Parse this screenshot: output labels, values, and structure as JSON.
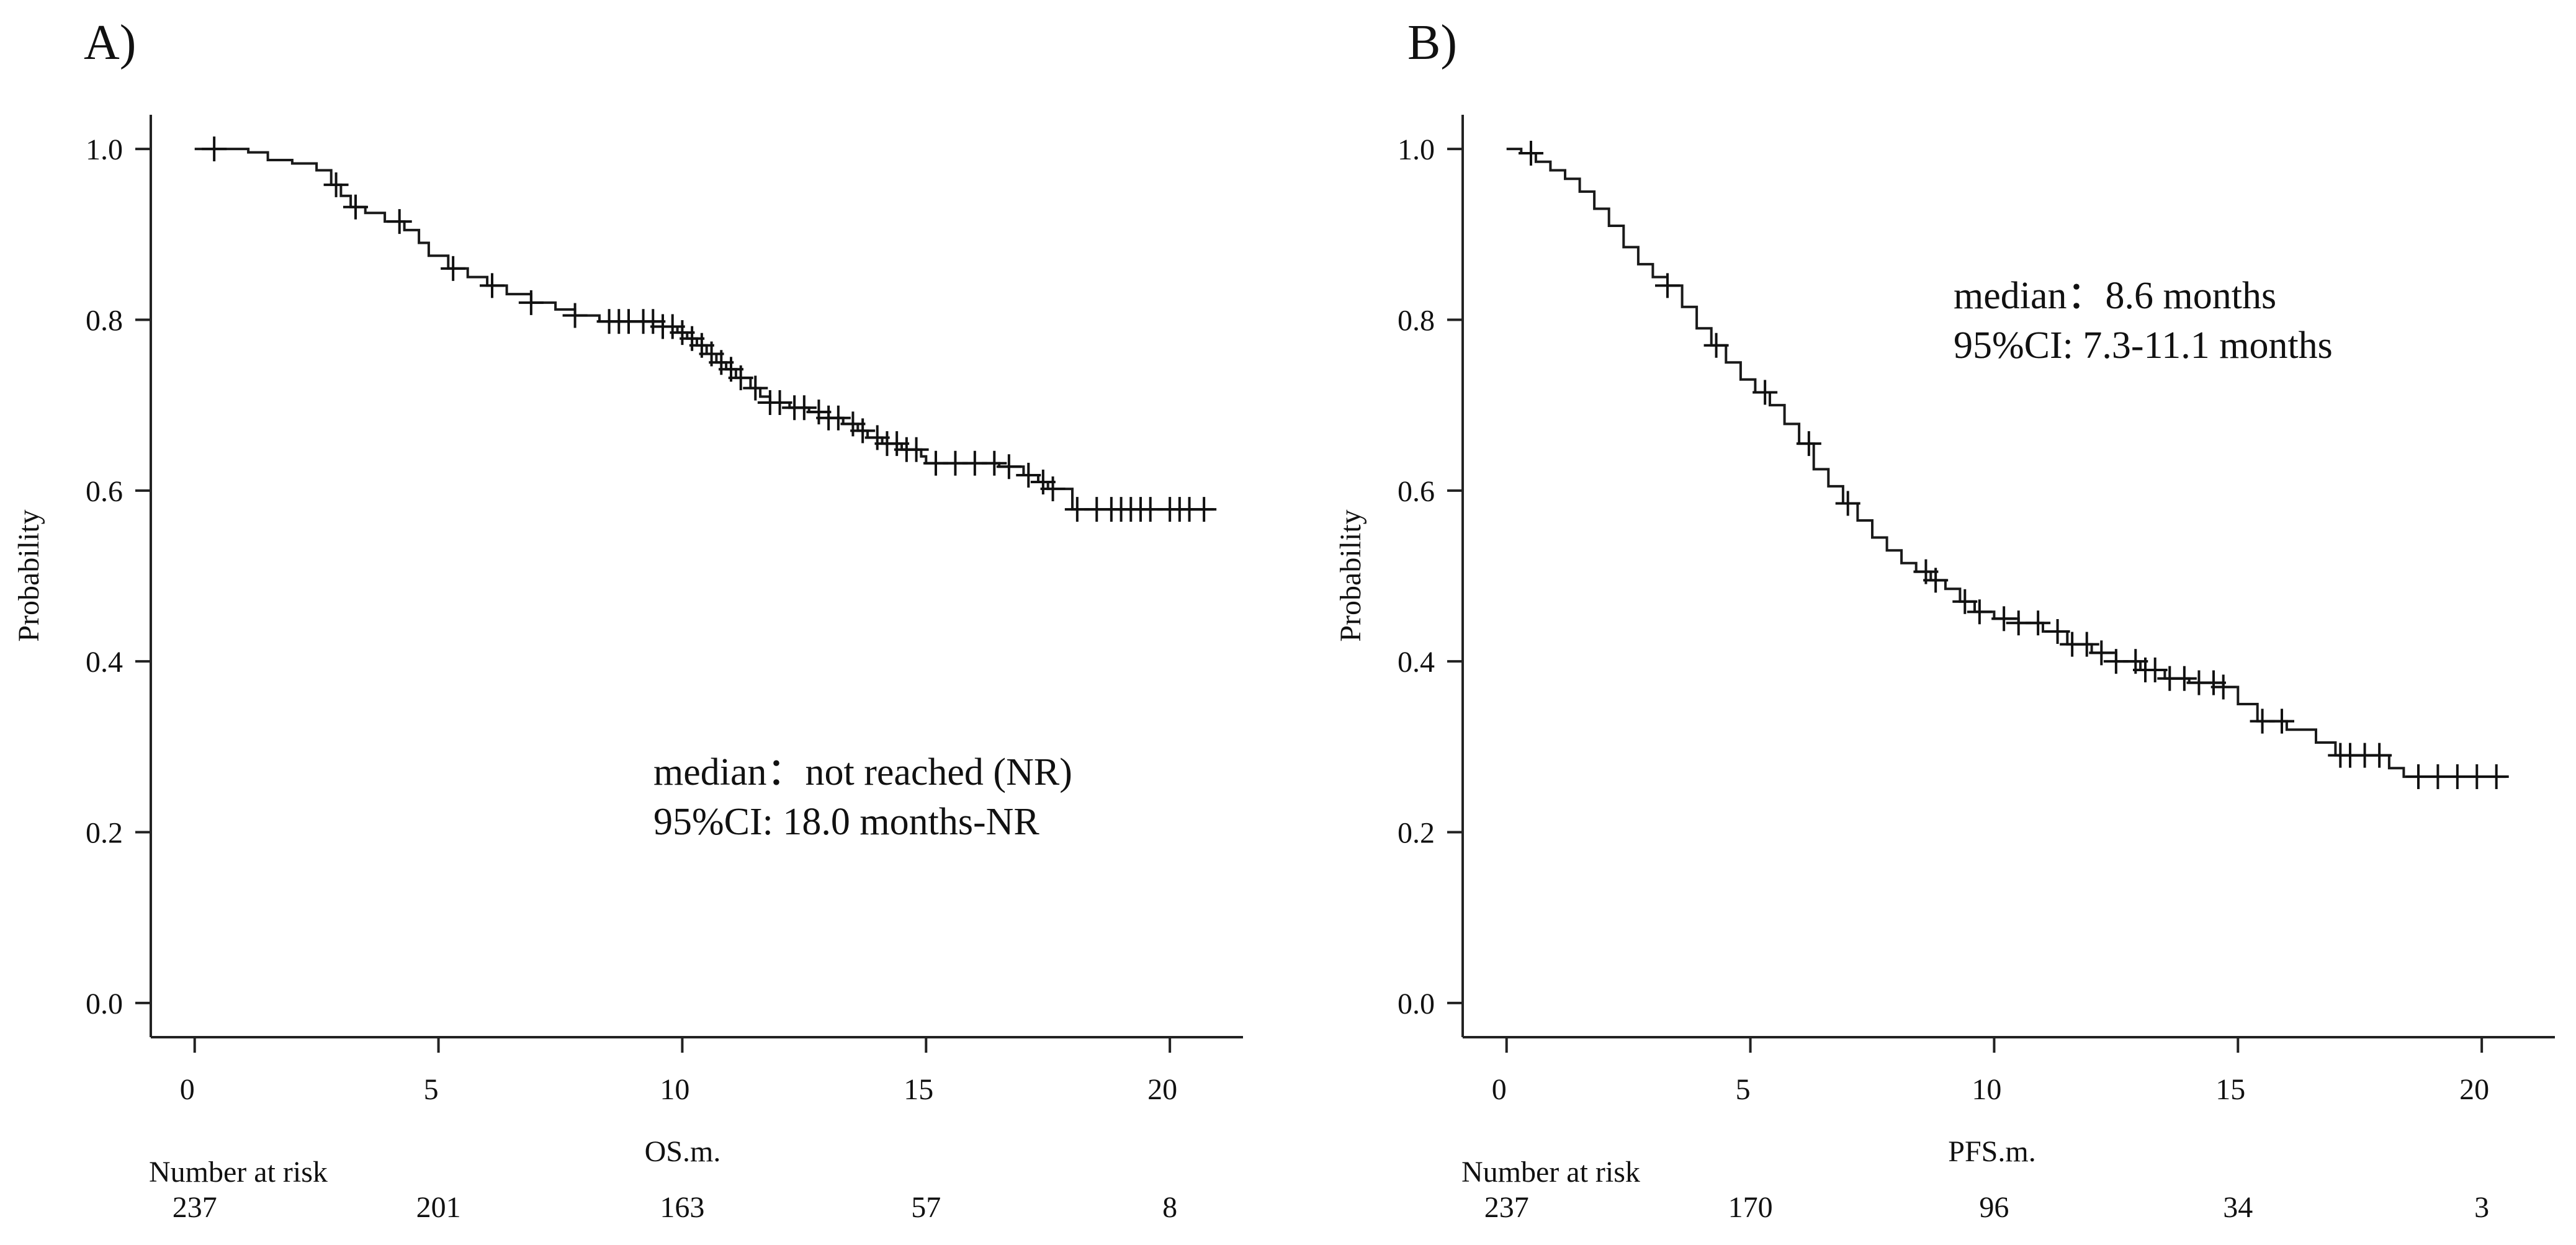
{
  "chart_data": [
    {
      "type": "line",
      "panel_label": "A)",
      "xlabel": "OS.m.",
      "ylabel": "Probability",
      "xlim": [
        -0.9,
        21.5
      ],
      "ylim": [
        -0.04,
        1.04
      ],
      "x_ticks": [
        "0",
        "5",
        "10",
        "15",
        "20"
      ],
      "y_ticks": [
        "0.0",
        "0.2",
        "0.4",
        "0.6",
        "0.8",
        "1.0"
      ],
      "annotation_line1": "median：not reached (NR)",
      "annotation_line2": "95%CI: 18.0 months-NR",
      "risk_title": "Number at risk",
      "risk_values": [
        "237",
        "201",
        "163",
        "57",
        "8"
      ],
      "series": [
        {
          "name": "OS",
          "steps": [
            [
              0,
              1.0
            ],
            [
              1.1,
              0.996
            ],
            [
              1.5,
              0.987
            ],
            [
              2.0,
              0.983
            ],
            [
              2.5,
              0.975
            ],
            [
              2.8,
              0.958
            ],
            [
              3.0,
              0.945
            ],
            [
              3.2,
              0.932
            ],
            [
              3.5,
              0.925
            ],
            [
              3.9,
              0.915
            ],
            [
              4.3,
              0.905
            ],
            [
              4.6,
              0.89
            ],
            [
              4.8,
              0.875
            ],
            [
              5.2,
              0.86
            ],
            [
              5.6,
              0.85
            ],
            [
              6.0,
              0.84
            ],
            [
              6.4,
              0.83
            ],
            [
              6.9,
              0.82
            ],
            [
              7.4,
              0.812
            ],
            [
              7.8,
              0.805
            ],
            [
              8.3,
              0.798
            ],
            [
              9.6,
              0.792
            ],
            [
              9.9,
              0.785
            ],
            [
              10.1,
              0.778
            ],
            [
              10.3,
              0.77
            ],
            [
              10.5,
              0.76
            ],
            [
              10.7,
              0.75
            ],
            [
              10.9,
              0.742
            ],
            [
              11.1,
              0.732
            ],
            [
              11.4,
              0.72
            ],
            [
              11.6,
              0.71
            ],
            [
              11.8,
              0.703
            ],
            [
              12.2,
              0.697
            ],
            [
              12.6,
              0.692
            ],
            [
              13.0,
              0.685
            ],
            [
              13.3,
              0.678
            ],
            [
              13.6,
              0.67
            ],
            [
              13.8,
              0.662
            ],
            [
              14.1,
              0.655
            ],
            [
              14.5,
              0.648
            ],
            [
              14.9,
              0.64
            ],
            [
              15.0,
              0.632
            ],
            [
              16.5,
              0.628
            ],
            [
              17.0,
              0.618
            ],
            [
              17.3,
              0.61
            ],
            [
              17.5,
              0.602
            ],
            [
              18.0,
              0.578
            ],
            [
              20.9,
              0.578
            ]
          ],
          "censor_x": [
            0.4,
            2.9,
            3.3,
            4.2,
            5.3,
            6.1,
            6.9,
            7.8,
            8.5,
            8.7,
            8.9,
            9.2,
            9.4,
            9.6,
            9.8,
            10.0,
            10.2,
            10.4,
            10.6,
            10.8,
            11.0,
            11.2,
            11.5,
            11.8,
            12.0,
            12.3,
            12.5,
            12.8,
            13.0,
            13.2,
            13.5,
            13.7,
            14.0,
            14.2,
            14.4,
            14.6,
            14.8,
            15.2,
            15.6,
            16.0,
            16.4,
            16.7,
            17.1,
            17.4,
            17.6,
            18.1,
            18.5,
            18.8,
            19.0,
            19.2,
            19.4,
            19.6,
            20.0,
            20.2,
            20.4,
            20.7
          ]
        }
      ]
    },
    {
      "type": "line",
      "panel_label": "B)",
      "xlabel": "PFS.m.",
      "ylabel": "Probability",
      "xlim": [
        -0.9,
        21.5
      ],
      "ylim": [
        -0.04,
        1.04
      ],
      "x_ticks": [
        "0",
        "5",
        "10",
        "15",
        "20"
      ],
      "y_ticks": [
        "0.0",
        "0.2",
        "0.4",
        "0.6",
        "0.8",
        "1.0"
      ],
      "annotation_line1": "median：8.6 months",
      "annotation_line2": "95%CI: 7.3-11.1 months",
      "risk_title": "Number at risk",
      "risk_values": [
        "237",
        "170",
        "96",
        "34",
        "3"
      ],
      "series": [
        {
          "name": "PFS",
          "steps": [
            [
              0,
              1.0
            ],
            [
              0.3,
              0.995
            ],
            [
              0.6,
              0.985
            ],
            [
              0.9,
              0.975
            ],
            [
              1.2,
              0.965
            ],
            [
              1.5,
              0.95
            ],
            [
              1.8,
              0.93
            ],
            [
              2.1,
              0.91
            ],
            [
              2.4,
              0.885
            ],
            [
              2.7,
              0.865
            ],
            [
              3.0,
              0.85
            ],
            [
              3.3,
              0.84
            ],
            [
              3.6,
              0.815
            ],
            [
              3.9,
              0.79
            ],
            [
              4.2,
              0.77
            ],
            [
              4.5,
              0.75
            ],
            [
              4.8,
              0.73
            ],
            [
              5.1,
              0.715
            ],
            [
              5.4,
              0.7
            ],
            [
              5.7,
              0.678
            ],
            [
              6.0,
              0.655
            ],
            [
              6.3,
              0.625
            ],
            [
              6.6,
              0.605
            ],
            [
              6.9,
              0.585
            ],
            [
              7.2,
              0.565
            ],
            [
              7.5,
              0.545
            ],
            [
              7.8,
              0.53
            ],
            [
              8.1,
              0.515
            ],
            [
              8.4,
              0.505
            ],
            [
              8.7,
              0.495
            ],
            [
              9.0,
              0.485
            ],
            [
              9.3,
              0.47
            ],
            [
              9.6,
              0.458
            ],
            [
              10.0,
              0.45
            ],
            [
              10.5,
              0.445
            ],
            [
              11.0,
              0.435
            ],
            [
              11.5,
              0.42
            ],
            [
              12.0,
              0.41
            ],
            [
              12.5,
              0.4
            ],
            [
              13.0,
              0.39
            ],
            [
              13.5,
              0.38
            ],
            [
              14.0,
              0.375
            ],
            [
              14.7,
              0.37
            ],
            [
              15.0,
              0.35
            ],
            [
              15.4,
              0.33
            ],
            [
              16.0,
              0.32
            ],
            [
              16.6,
              0.305
            ],
            [
              17.0,
              0.29
            ],
            [
              18.1,
              0.275
            ],
            [
              18.4,
              0.265
            ],
            [
              20.5,
              0.265
            ]
          ],
          "censor_x": [
            0.5,
            3.3,
            4.3,
            5.3,
            6.2,
            7.0,
            8.6,
            8.8,
            9.4,
            9.7,
            10.2,
            10.5,
            10.9,
            11.3,
            11.6,
            11.9,
            12.2,
            12.5,
            12.9,
            13.1,
            13.3,
            13.6,
            13.9,
            14.2,
            14.5,
            14.7,
            15.5,
            15.9,
            17.1,
            17.3,
            17.6,
            17.9,
            18.7,
            19.1,
            19.5,
            19.9,
            20.3
          ]
        }
      ]
    }
  ]
}
